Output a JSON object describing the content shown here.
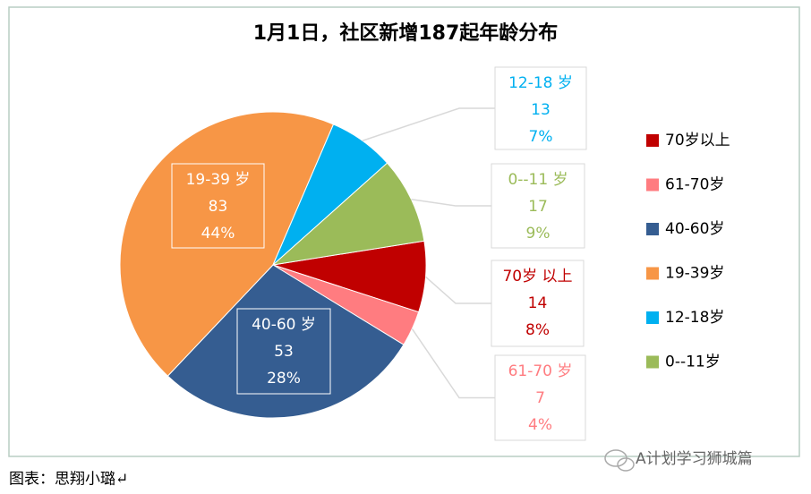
{
  "chart_data": {
    "type": "pie",
    "title": "1月1日，社区新增187起年龄分布",
    "categories": [
      "70岁以上",
      "61-70岁",
      "40-60岁",
      "19-39岁",
      "12-18岁",
      "0--11岁"
    ],
    "label_names": [
      "70岁 以上",
      "61-70 岁",
      "40-60 岁",
      "19-39 岁",
      "12-18 岁",
      "0--11 岁"
    ],
    "values": [
      14,
      7,
      53,
      83,
      13,
      17
    ],
    "percent_labels": [
      "8%",
      "4%",
      "28%",
      "44%",
      "7%",
      "9%"
    ],
    "colors": [
      "#c00000",
      "#ff7c80",
      "#355d91",
      "#f79646",
      "#00b0f0",
      "#9bbb59"
    ],
    "legend": "right"
  },
  "caption": "图表：思翔小璐↵",
  "watermark": "A计划学习狮城篇"
}
